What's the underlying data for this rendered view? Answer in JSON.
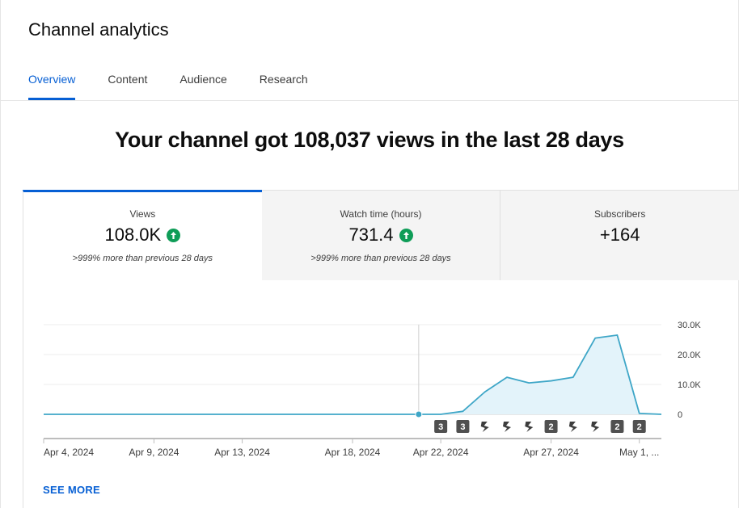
{
  "header": {
    "title": "Channel analytics"
  },
  "tabs": [
    {
      "label": "Overview",
      "active": true
    },
    {
      "label": "Content",
      "active": false
    },
    {
      "label": "Audience",
      "active": false
    },
    {
      "label": "Research",
      "active": false
    }
  ],
  "headline": "Your channel got 108,037 views in the last 28 days",
  "metrics": [
    {
      "label": "Views",
      "value": "108.0K",
      "trend_icon": "arrow-up-circle-icon",
      "comparison": ">999% more than previous 28 days"
    },
    {
      "label": "Watch time (hours)",
      "value": "731.4",
      "trend_icon": "arrow-up-circle-icon",
      "comparison": ">999% more than previous 28 days"
    },
    {
      "label": "Subscribers",
      "value": "+164"
    }
  ],
  "colors": {
    "accent": "#065fd4",
    "line": "#3ea6c7",
    "area": "#e3f3fa",
    "trend_up": "#0f9d58"
  },
  "see_more": "SEE MORE",
  "chart_data": {
    "type": "area",
    "series": [
      {
        "values": [
          0,
          0,
          0,
          0,
          0,
          0,
          0,
          0,
          0,
          0,
          0,
          0,
          0,
          0,
          0,
          0,
          0,
          0,
          0,
          1000,
          7500,
          12400,
          10500,
          11200,
          12400,
          25500,
          26500,
          300,
          0
        ]
      }
    ],
    "x_tick_labels": [
      "Apr 4, 2024",
      "Apr 9, 2024",
      "Apr 13, 2024",
      "Apr 18, 2024",
      "Apr 22, 2024",
      "Apr 27, 2024",
      "May 1, ..."
    ],
    "x_tick_index": [
      0,
      5,
      9,
      14,
      18,
      23,
      27
    ],
    "y_tick_labels": [
      "30.0K",
      "20.0K",
      "10.0K",
      "0"
    ],
    "y_ticks": [
      30000,
      20000,
      10000,
      0
    ],
    "ylim": [
      0,
      30000
    ],
    "marker_index": 17,
    "video_markers": [
      {
        "index": 18,
        "label": "3"
      },
      {
        "index": 19,
        "label": "3"
      },
      {
        "index": 20,
        "label": "shorts"
      },
      {
        "index": 21,
        "label": "shorts"
      },
      {
        "index": 22,
        "label": "shorts"
      },
      {
        "index": 23,
        "label": "2"
      },
      {
        "index": 24,
        "label": "shorts"
      },
      {
        "index": 25,
        "label": "shorts"
      },
      {
        "index": 26,
        "label": "2"
      },
      {
        "index": 27,
        "label": "2"
      }
    ]
  }
}
